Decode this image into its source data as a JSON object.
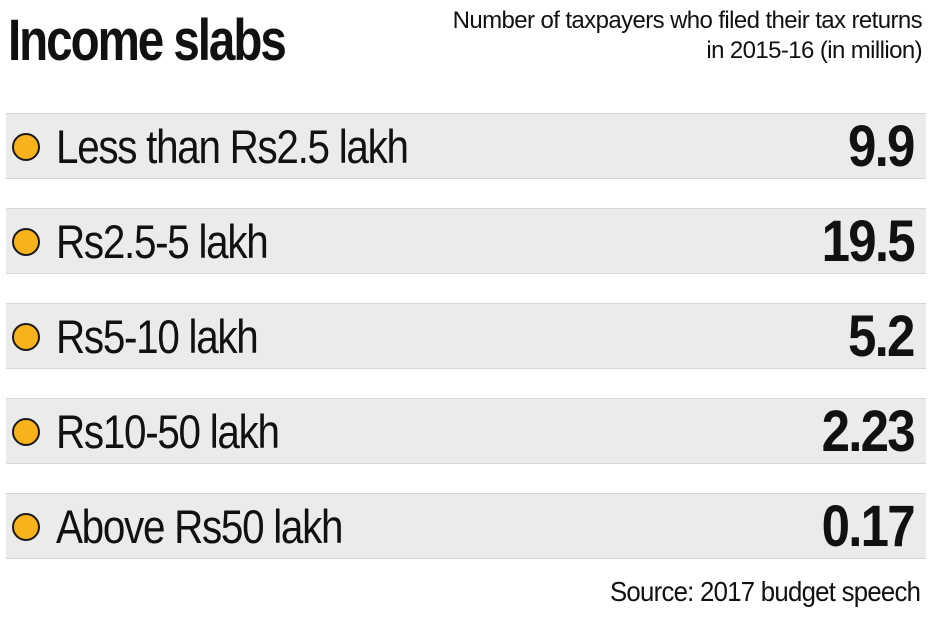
{
  "header": {
    "title": "Income slabs",
    "subtitle": "Number of taxpayers who filed their tax returns in 2015-16 (in million)"
  },
  "footer": {
    "source": "Source: 2017 budget speech"
  },
  "style": {
    "bullet_color": "#f7b21c",
    "row_background": "#ebebeb",
    "text_color": "#111111"
  },
  "chart_data": {
    "type": "table",
    "title": "Income slabs",
    "subtitle": "Number of taxpayers who filed their tax returns in 2015-16 (in million)",
    "categories": [
      "Less than Rs2.5 lakh",
      "Rs2.5-5 lakh",
      "Rs5-10 lakh",
      "Rs10-50 lakh",
      "Above Rs50 lakh"
    ],
    "values": [
      9.9,
      19.5,
      5.2,
      2.23,
      0.17
    ],
    "value_labels": [
      "9.9",
      "19.5",
      "5.2",
      "2.23",
      "0.17"
    ],
    "source": "Source: 2017 budget speech"
  }
}
